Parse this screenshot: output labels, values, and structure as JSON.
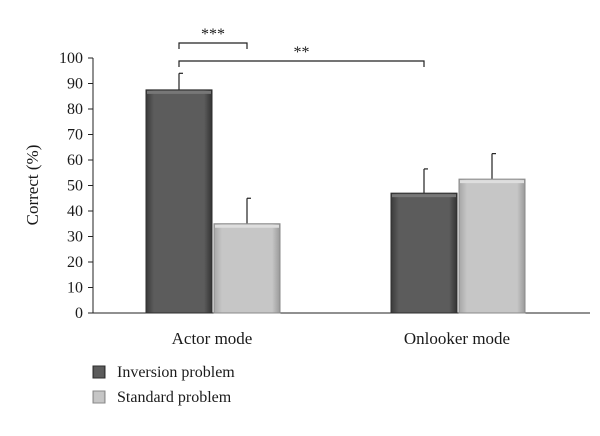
{
  "chart_data": {
    "type": "bar",
    "ylabel": "Correct (%)",
    "xlabel": "",
    "ylim": [
      0,
      100
    ],
    "yticks": [
      0,
      10,
      20,
      30,
      40,
      50,
      60,
      70,
      80,
      90,
      100
    ],
    "categories": [
      "Actor mode",
      "Onlooker mode"
    ],
    "series": [
      {
        "name": "Inversion problem",
        "color": "#5a5a5a",
        "values": [
          87.5,
          47
        ],
        "error": [
          6.5,
          9.5
        ]
      },
      {
        "name": "Standard problem",
        "color": "#c3c3c3",
        "values": [
          35,
          52.5
        ],
        "error": [
          10,
          10
        ]
      }
    ],
    "annotations": [
      {
        "label": "***",
        "from_category": 0,
        "from_series": 0,
        "to_category": 0,
        "to_series": 1
      },
      {
        "label": "**",
        "from_category": 0,
        "from_series": 0,
        "to_category": 1,
        "to_series": 0
      }
    ],
    "legend_position": "bottom-left",
    "grid": false
  }
}
